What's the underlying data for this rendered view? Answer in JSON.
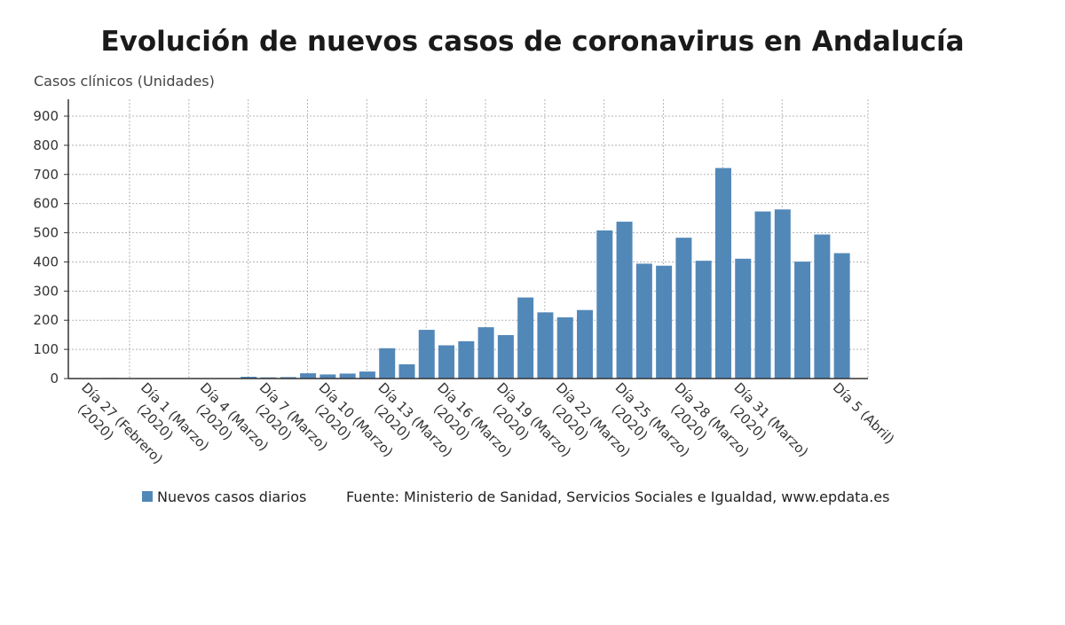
{
  "chart_data": {
    "type": "bar",
    "title": "Evolución de nuevos casos de coronavirus en Andalucía",
    "ylabel": "Casos clínicos (Unidades)",
    "xlabel": "",
    "ylim": [
      0,
      900
    ],
    "yticks": [
      0,
      100,
      200,
      300,
      400,
      500,
      600,
      700,
      800,
      900
    ],
    "grid": true,
    "bar_color": "#5288b8",
    "series": [
      {
        "name": "Nuevos casos diarios",
        "values": [
          1,
          2,
          1,
          0,
          0,
          1,
          1,
          0,
          6,
          4,
          5,
          18,
          14,
          17,
          24,
          104,
          49,
          167,
          114,
          128,
          176,
          149,
          278,
          227,
          210,
          235,
          508,
          538,
          394,
          387,
          483,
          404,
          722,
          411,
          573,
          580,
          401,
          494,
          430
        ]
      }
    ],
    "x_tick_labels": [
      {
        "index": 0,
        "lines": [
          "Día 27 (Febrero)",
          "(2020)"
        ]
      },
      {
        "index": 3,
        "lines": [
          "Día 1 (Marzo)",
          "(2020)"
        ]
      },
      {
        "index": 6,
        "lines": [
          "Día 4 (Marzo)",
          "(2020)"
        ]
      },
      {
        "index": 9,
        "lines": [
          "Día 7 (Marzo)",
          "(2020)"
        ]
      },
      {
        "index": 12,
        "lines": [
          "Día 10 (Marzo)",
          "(2020)"
        ]
      },
      {
        "index": 15,
        "lines": [
          "Día 13 (Marzo)",
          "(2020)"
        ]
      },
      {
        "index": 18,
        "lines": [
          "Día 16 (Marzo)",
          "(2020)"
        ]
      },
      {
        "index": 21,
        "lines": [
          "Día 19 (Marzo)",
          "(2020)"
        ]
      },
      {
        "index": 24,
        "lines": [
          "Día 22 (Marzo)",
          "(2020)"
        ]
      },
      {
        "index": 27,
        "lines": [
          "Día 25 (Marzo)",
          "(2020)"
        ]
      },
      {
        "index": 30,
        "lines": [
          "Día 28 (Marzo)",
          "(2020)"
        ]
      },
      {
        "index": 33,
        "lines": [
          "Día 31 (Marzo)",
          "(2020)"
        ]
      },
      {
        "index": 38,
        "lines": [
          "Día 5 (Abril)"
        ]
      }
    ],
    "legend": {
      "label": "Nuevos casos diarios",
      "placement": "bottom"
    },
    "source": "Fuente: Ministerio de Sanidad, Servicios Sociales e Igualdad, www.epdata.es"
  }
}
